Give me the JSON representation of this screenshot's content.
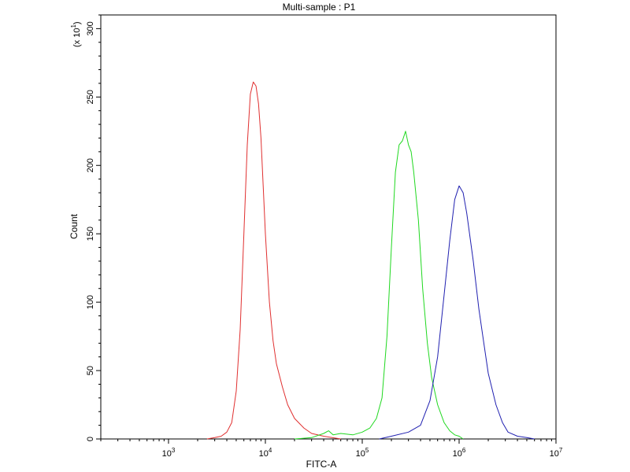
{
  "chart_data": {
    "type": "line",
    "title": "Multi-sample : P1",
    "xlabel": "FITC-A",
    "ylabel": "Count",
    "y_multiplier": "(x 10",
    "y_multiplier_exp": "1",
    "y_multiplier_close": ")",
    "x_scale": "log",
    "xlim": [
      200,
      10000000
    ],
    "ylim": [
      0,
      310
    ],
    "grid": false,
    "legend": "none",
    "x_ticks": [
      {
        "base": "10",
        "exp": "3",
        "value": 1000
      },
      {
        "base": "10",
        "exp": "4",
        "value": 10000
      },
      {
        "base": "10",
        "exp": "5",
        "value": 100000
      },
      {
        "base": "10",
        "exp": "6",
        "value": 1000000
      },
      {
        "base": "10",
        "exp": "7",
        "value": 10000000
      }
    ],
    "y_ticks": [
      "0",
      "50",
      "100",
      "150",
      "200",
      "250",
      "300"
    ],
    "series": [
      {
        "color": "#e03030",
        "points": [
          [
            2500,
            0
          ],
          [
            3000,
            1
          ],
          [
            3500,
            2
          ],
          [
            4000,
            5
          ],
          [
            4500,
            12
          ],
          [
            5000,
            35
          ],
          [
            5500,
            80
          ],
          [
            6000,
            150
          ],
          [
            6500,
            215
          ],
          [
            7000,
            252
          ],
          [
            7500,
            261
          ],
          [
            8000,
            258
          ],
          [
            8500,
            245
          ],
          [
            9000,
            220
          ],
          [
            9500,
            185
          ],
          [
            10000,
            150
          ],
          [
            11000,
            100
          ],
          [
            12000,
            72
          ],
          [
            13000,
            55
          ],
          [
            15000,
            38
          ],
          [
            17000,
            25
          ],
          [
            20000,
            15
          ],
          [
            25000,
            8
          ],
          [
            30000,
            4
          ],
          [
            40000,
            2
          ],
          [
            60000,
            0
          ]
        ]
      },
      {
        "color": "#20d820",
        "points": [
          [
            20000,
            0
          ],
          [
            30000,
            1
          ],
          [
            40000,
            4
          ],
          [
            45000,
            6
          ],
          [
            50000,
            3
          ],
          [
            60000,
            4
          ],
          [
            80000,
            3
          ],
          [
            100000,
            5
          ],
          [
            120000,
            8
          ],
          [
            140000,
            15
          ],
          [
            160000,
            30
          ],
          [
            180000,
            75
          ],
          [
            200000,
            140
          ],
          [
            220000,
            195
          ],
          [
            240000,
            215
          ],
          [
            260000,
            218
          ],
          [
            280000,
            225
          ],
          [
            300000,
            215
          ],
          [
            320000,
            210
          ],
          [
            340000,
            195
          ],
          [
            380000,
            160
          ],
          [
            420000,
            110
          ],
          [
            470000,
            70
          ],
          [
            520000,
            45
          ],
          [
            600000,
            25
          ],
          [
            700000,
            12
          ],
          [
            800000,
            6
          ],
          [
            900000,
            3
          ],
          [
            1000000,
            2
          ],
          [
            1100000,
            0
          ]
        ]
      },
      {
        "color": "#2020b0",
        "points": [
          [
            150000,
            0
          ],
          [
            200000,
            2
          ],
          [
            300000,
            5
          ],
          [
            400000,
            10
          ],
          [
            500000,
            28
          ],
          [
            600000,
            60
          ],
          [
            700000,
            105
          ],
          [
            800000,
            145
          ],
          [
            900000,
            175
          ],
          [
            1000000,
            185
          ],
          [
            1100000,
            180
          ],
          [
            1200000,
            165
          ],
          [
            1400000,
            130
          ],
          [
            1600000,
            95
          ],
          [
            1800000,
            70
          ],
          [
            2000000,
            48
          ],
          [
            2400000,
            25
          ],
          [
            2800000,
            12
          ],
          [
            3200000,
            5
          ],
          [
            4000000,
            2
          ],
          [
            5000000,
            1
          ],
          [
            6000000,
            0
          ]
        ]
      }
    ]
  }
}
